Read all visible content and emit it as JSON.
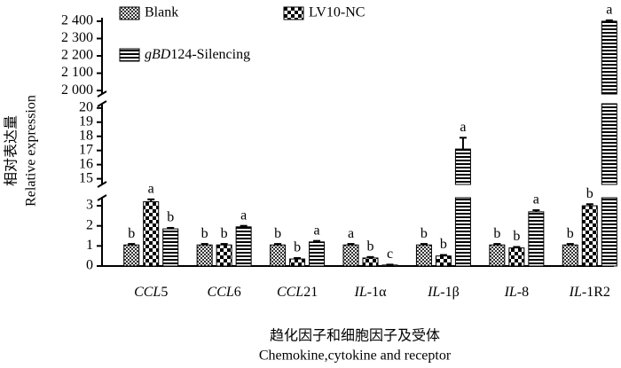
{
  "chart_data": {
    "type": "bar",
    "ylabel_cn": "相对表达量",
    "ylabel": "Relative expression",
    "xlabel_cn": "趋化因子和细胞因子及受体",
    "xlabel": "Chemokine,cytokine and receptor",
    "categories": [
      "CCL5",
      "CCL6",
      "CCL21",
      "IL-1α",
      "IL-1β",
      "IL-8",
      "IL-1R2"
    ],
    "y_segments": [
      {
        "ylim": [
          0,
          3.4
        ],
        "yticks": [
          0,
          1,
          2,
          3
        ]
      },
      {
        "ylim": [
          14.6,
          20.3
        ],
        "yticks": [
          15,
          16,
          17,
          18,
          19,
          20
        ]
      },
      {
        "ylim": [
          1980,
          2420
        ],
        "yticks": [
          {
            "value": 2000,
            "label": "2 000"
          },
          {
            "value": 2100,
            "label": "2 100"
          },
          {
            "value": 2200,
            "label": "2 200"
          },
          {
            "value": 2300,
            "label": "2 300"
          },
          {
            "value": 2400,
            "label": "2 400"
          }
        ]
      }
    ],
    "legend_position": "top-left",
    "series": [
      {
        "name": "Blank",
        "color": "#000000",
        "pattern": "checker-fine",
        "values": [
          1.05,
          1.05,
          1.05,
          1.05,
          1.05,
          1.05,
          1.05
        ],
        "errors": [
          0.05,
          0.05,
          0.05,
          0.05,
          0.05,
          0.05,
          0.05
        ],
        "letters": [
          "b",
          "b",
          "b",
          "a",
          "b",
          "b",
          "b"
        ]
      },
      {
        "name": "LV10-NC",
        "color": "#000000",
        "pattern": "checker",
        "values": [
          3.2,
          1.05,
          0.35,
          0.4,
          0.5,
          0.9,
          3.0
        ],
        "errors": [
          0.12,
          0.05,
          0.05,
          0.05,
          0.05,
          0.05,
          0.08
        ],
        "letters": [
          "a",
          "b",
          "b",
          "b",
          "b",
          "b",
          "b"
        ]
      },
      {
        "name": "gBD124-Silencing",
        "color": "#000000",
        "pattern": "hstripe",
        "values": [
          1.85,
          1.95,
          1.2,
          0.05,
          17.1,
          2.7,
          2400
        ],
        "errors": [
          0.05,
          0.05,
          0.05,
          0.02,
          0.8,
          0.08,
          5
        ],
        "letters": [
          "b",
          "a",
          "a",
          "c",
          "a",
          "a",
          "a"
        ]
      }
    ]
  }
}
